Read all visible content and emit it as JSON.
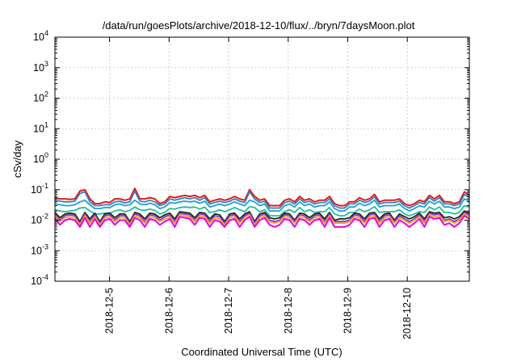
{
  "chart_data": {
    "type": "line",
    "title": "/data/run/goesPlots/archive/2018-12-10/flux/../bryn/7daysMoon.plot",
    "xlabel": "Coordinated Universal Time (UTC)",
    "ylabel": "cSv/day",
    "y_scale": "log",
    "ylim": [
      0.0001,
      10000
    ],
    "y_ticks": [
      {
        "base": "10",
        "exp": "4"
      },
      {
        "base": "10",
        "exp": "3"
      },
      {
        "base": "10",
        "exp": "2"
      },
      {
        "base": "10",
        "exp": "1"
      },
      {
        "base": "10",
        "exp": "0"
      },
      {
        "base": "10",
        "exp": "-1"
      },
      {
        "base": "10",
        "exp": "-2"
      },
      {
        "base": "10",
        "exp": "-3"
      },
      {
        "base": "10",
        "exp": "-4"
      }
    ],
    "xlim": [
      "2018-12-04T02:00",
      "2018-12-11T01:00"
    ],
    "x_tick_labels": [
      "2018-12-5",
      "2018-12-6",
      "2018-12-7",
      "2018-12-8",
      "2018-12-9",
      "2018-12-10"
    ],
    "grid": true,
    "legend": "none",
    "series_colors": [
      "#e41a1c",
      "#377eb8",
      "#1f9fd6",
      "#1fbf9f",
      "#222222",
      "#7a3fbf",
      "#ff9f1f",
      "#e600e6"
    ],
    "x_hours": [
      0,
      2,
      4,
      6,
      8,
      10,
      12,
      14,
      16,
      18,
      20,
      22,
      24,
      26,
      28,
      30,
      32,
      34,
      36,
      38,
      40,
      42,
      44,
      46,
      48,
      50,
      52,
      54,
      56,
      58,
      60,
      62,
      64,
      66,
      68,
      70,
      72,
      74,
      76,
      78,
      80,
      82,
      84,
      86,
      88,
      90,
      92,
      94,
      96,
      98,
      100,
      102,
      104,
      106,
      108,
      110,
      112,
      114,
      116,
      118,
      120,
      122,
      124,
      126,
      128,
      130,
      132,
      134,
      136,
      138,
      140,
      142,
      144,
      146,
      148,
      150,
      152,
      154,
      156,
      158,
      160,
      162,
      164,
      166
    ],
    "series": [
      {
        "values": [
          0.055,
          0.05,
          0.05,
          0.048,
          0.05,
          0.09,
          0.1,
          0.05,
          0.035,
          0.035,
          0.04,
          0.038,
          0.05,
          0.05,
          0.045,
          0.05,
          0.11,
          0.05,
          0.05,
          0.055,
          0.05,
          0.035,
          0.04,
          0.06,
          0.055,
          0.06,
          0.065,
          0.06,
          0.065,
          0.055,
          0.065,
          0.04,
          0.045,
          0.05,
          0.045,
          0.05,
          0.06,
          0.05,
          0.045,
          0.1,
          0.06,
          0.045,
          0.05,
          0.03,
          0.03,
          0.03,
          0.045,
          0.05,
          0.04,
          0.06,
          0.045,
          0.05,
          0.04,
          0.045,
          0.045,
          0.06,
          0.035,
          0.03,
          0.03,
          0.04,
          0.04,
          0.055,
          0.045,
          0.05,
          0.07,
          0.04,
          0.045,
          0.045,
          0.045,
          0.05,
          0.035,
          0.03,
          0.035,
          0.045,
          0.04,
          0.065,
          0.05,
          0.065,
          0.04,
          0.04,
          0.035,
          0.04,
          0.085,
          0.065
        ]
      },
      {
        "values": [
          0.045,
          0.042,
          0.04,
          0.04,
          0.042,
          0.075,
          0.085,
          0.04,
          0.03,
          0.03,
          0.032,
          0.032,
          0.04,
          0.042,
          0.037,
          0.04,
          0.09,
          0.042,
          0.04,
          0.045,
          0.04,
          0.03,
          0.034,
          0.05,
          0.045,
          0.05,
          0.055,
          0.05,
          0.055,
          0.045,
          0.055,
          0.034,
          0.038,
          0.042,
          0.038,
          0.042,
          0.05,
          0.042,
          0.038,
          0.085,
          0.05,
          0.038,
          0.042,
          0.025,
          0.025,
          0.025,
          0.038,
          0.042,
          0.034,
          0.05,
          0.038,
          0.042,
          0.034,
          0.038,
          0.038,
          0.05,
          0.03,
          0.025,
          0.025,
          0.034,
          0.034,
          0.045,
          0.038,
          0.042,
          0.058,
          0.034,
          0.038,
          0.038,
          0.038,
          0.042,
          0.03,
          0.025,
          0.03,
          0.038,
          0.034,
          0.055,
          0.042,
          0.055,
          0.034,
          0.034,
          0.03,
          0.034,
          0.07,
          0.055
        ]
      },
      {
        "values": [
          0.035,
          0.032,
          0.03,
          0.03,
          0.032,
          0.04,
          0.045,
          0.032,
          0.024,
          0.024,
          0.026,
          0.026,
          0.032,
          0.034,
          0.03,
          0.032,
          0.045,
          0.034,
          0.032,
          0.036,
          0.032,
          0.024,
          0.027,
          0.038,
          0.036,
          0.04,
          0.042,
          0.04,
          0.042,
          0.036,
          0.042,
          0.027,
          0.03,
          0.034,
          0.03,
          0.034,
          0.04,
          0.034,
          0.03,
          0.045,
          0.04,
          0.03,
          0.034,
          0.02,
          0.02,
          0.02,
          0.03,
          0.034,
          0.027,
          0.04,
          0.03,
          0.034,
          0.027,
          0.03,
          0.03,
          0.04,
          0.024,
          0.02,
          0.02,
          0.027,
          0.027,
          0.036,
          0.03,
          0.034,
          0.045,
          0.027,
          0.03,
          0.03,
          0.03,
          0.034,
          0.024,
          0.02,
          0.024,
          0.03,
          0.027,
          0.042,
          0.034,
          0.042,
          0.027,
          0.027,
          0.024,
          0.027,
          0.05,
          0.042
        ]
      },
      {
        "values": [
          0.022,
          0.02,
          0.019,
          0.02,
          0.021,
          0.025,
          0.026,
          0.02,
          0.016,
          0.016,
          0.017,
          0.017,
          0.02,
          0.022,
          0.019,
          0.021,
          0.027,
          0.022,
          0.021,
          0.023,
          0.021,
          0.016,
          0.018,
          0.024,
          0.023,
          0.026,
          0.027,
          0.026,
          0.027,
          0.023,
          0.027,
          0.018,
          0.019,
          0.022,
          0.019,
          0.022,
          0.026,
          0.022,
          0.019,
          0.028,
          0.026,
          0.019,
          0.022,
          0.014,
          0.014,
          0.014,
          0.019,
          0.022,
          0.018,
          0.026,
          0.019,
          0.022,
          0.018,
          0.019,
          0.019,
          0.026,
          0.016,
          0.014,
          0.014,
          0.018,
          0.018,
          0.023,
          0.019,
          0.022,
          0.028,
          0.018,
          0.019,
          0.019,
          0.019,
          0.022,
          0.016,
          0.014,
          0.016,
          0.019,
          0.018,
          0.027,
          0.022,
          0.027,
          0.018,
          0.018,
          0.016,
          0.018,
          0.03,
          0.027
        ]
      },
      {
        "values": [
          0.018,
          0.012,
          0.016,
          0.017,
          0.016,
          0.009,
          0.018,
          0.011,
          0.017,
          0.009,
          0.016,
          0.017,
          0.012,
          0.016,
          0.016,
          0.009,
          0.018,
          0.016,
          0.011,
          0.017,
          0.016,
          0.012,
          0.015,
          0.017,
          0.011,
          0.019,
          0.018,
          0.017,
          0.012,
          0.018,
          0.017,
          0.011,
          0.016,
          0.015,
          0.009,
          0.016,
          0.017,
          0.011,
          0.016,
          0.019,
          0.009,
          0.016,
          0.018,
          0.012,
          0.011,
          0.012,
          0.017,
          0.016,
          0.01,
          0.017,
          0.016,
          0.012,
          0.016,
          0.017,
          0.011,
          0.018,
          0.01,
          0.011,
          0.011,
          0.012,
          0.017,
          0.016,
          0.011,
          0.017,
          0.018,
          0.011,
          0.016,
          0.017,
          0.01,
          0.016,
          0.013,
          0.011,
          0.013,
          0.017,
          0.011,
          0.019,
          0.017,
          0.018,
          0.012,
          0.013,
          0.011,
          0.013,
          0.02,
          0.017
        ]
      },
      {
        "values": [
          0.016,
          0.01,
          0.014,
          0.015,
          0.014,
          0.008,
          0.016,
          0.009,
          0.015,
          0.008,
          0.014,
          0.015,
          0.01,
          0.014,
          0.014,
          0.008,
          0.016,
          0.014,
          0.009,
          0.015,
          0.014,
          0.01,
          0.013,
          0.015,
          0.009,
          0.017,
          0.016,
          0.015,
          0.01,
          0.016,
          0.015,
          0.009,
          0.014,
          0.013,
          0.008,
          0.014,
          0.015,
          0.009,
          0.014,
          0.017,
          0.008,
          0.014,
          0.016,
          0.01,
          0.009,
          0.01,
          0.015,
          0.014,
          0.009,
          0.015,
          0.014,
          0.01,
          0.014,
          0.015,
          0.009,
          0.016,
          0.009,
          0.009,
          0.009,
          0.01,
          0.015,
          0.014,
          0.009,
          0.015,
          0.016,
          0.009,
          0.014,
          0.015,
          0.009,
          0.014,
          0.011,
          0.009,
          0.011,
          0.015,
          0.009,
          0.017,
          0.015,
          0.016,
          0.01,
          0.011,
          0.009,
          0.011,
          0.018,
          0.015
        ]
      },
      {
        "values": [
          0.014,
          0.009,
          0.012,
          0.013,
          0.012,
          0.007,
          0.014,
          0.008,
          0.013,
          0.007,
          0.012,
          0.013,
          0.009,
          0.012,
          0.012,
          0.007,
          0.014,
          0.012,
          0.008,
          0.013,
          0.012,
          0.009,
          0.011,
          0.013,
          0.008,
          0.015,
          0.014,
          0.013,
          0.009,
          0.014,
          0.013,
          0.008,
          0.012,
          0.011,
          0.007,
          0.012,
          0.013,
          0.008,
          0.012,
          0.015,
          0.007,
          0.012,
          0.014,
          0.009,
          0.008,
          0.009,
          0.013,
          0.012,
          0.008,
          0.013,
          0.012,
          0.009,
          0.012,
          0.013,
          0.008,
          0.014,
          0.008,
          0.008,
          0.008,
          0.009,
          0.013,
          0.012,
          0.008,
          0.013,
          0.014,
          0.008,
          0.012,
          0.013,
          0.008,
          0.012,
          0.01,
          0.008,
          0.01,
          0.013,
          0.008,
          0.015,
          0.013,
          0.014,
          0.009,
          0.01,
          0.008,
          0.01,
          0.016,
          0.013
        ]
      },
      {
        "values": [
          0.012,
          0.007,
          0.01,
          0.011,
          0.01,
          0.006,
          0.012,
          0.006,
          0.011,
          0.006,
          0.01,
          0.011,
          0.007,
          0.01,
          0.01,
          0.006,
          0.012,
          0.01,
          0.006,
          0.011,
          0.01,
          0.007,
          0.009,
          0.011,
          0.006,
          0.013,
          0.012,
          0.011,
          0.007,
          0.012,
          0.011,
          0.006,
          0.01,
          0.009,
          0.006,
          0.01,
          0.011,
          0.006,
          0.01,
          0.013,
          0.006,
          0.01,
          0.012,
          0.007,
          0.006,
          0.007,
          0.011,
          0.01,
          0.006,
          0.011,
          0.01,
          0.007,
          0.01,
          0.011,
          0.006,
          0.012,
          0.006,
          0.006,
          0.006,
          0.007,
          0.011,
          0.01,
          0.006,
          0.011,
          0.012,
          0.006,
          0.01,
          0.011,
          0.006,
          0.01,
          0.008,
          0.006,
          0.008,
          0.011,
          0.006,
          0.013,
          0.011,
          0.012,
          0.007,
          0.008,
          0.006,
          0.008,
          0.014,
          0.011
        ]
      }
    ]
  }
}
